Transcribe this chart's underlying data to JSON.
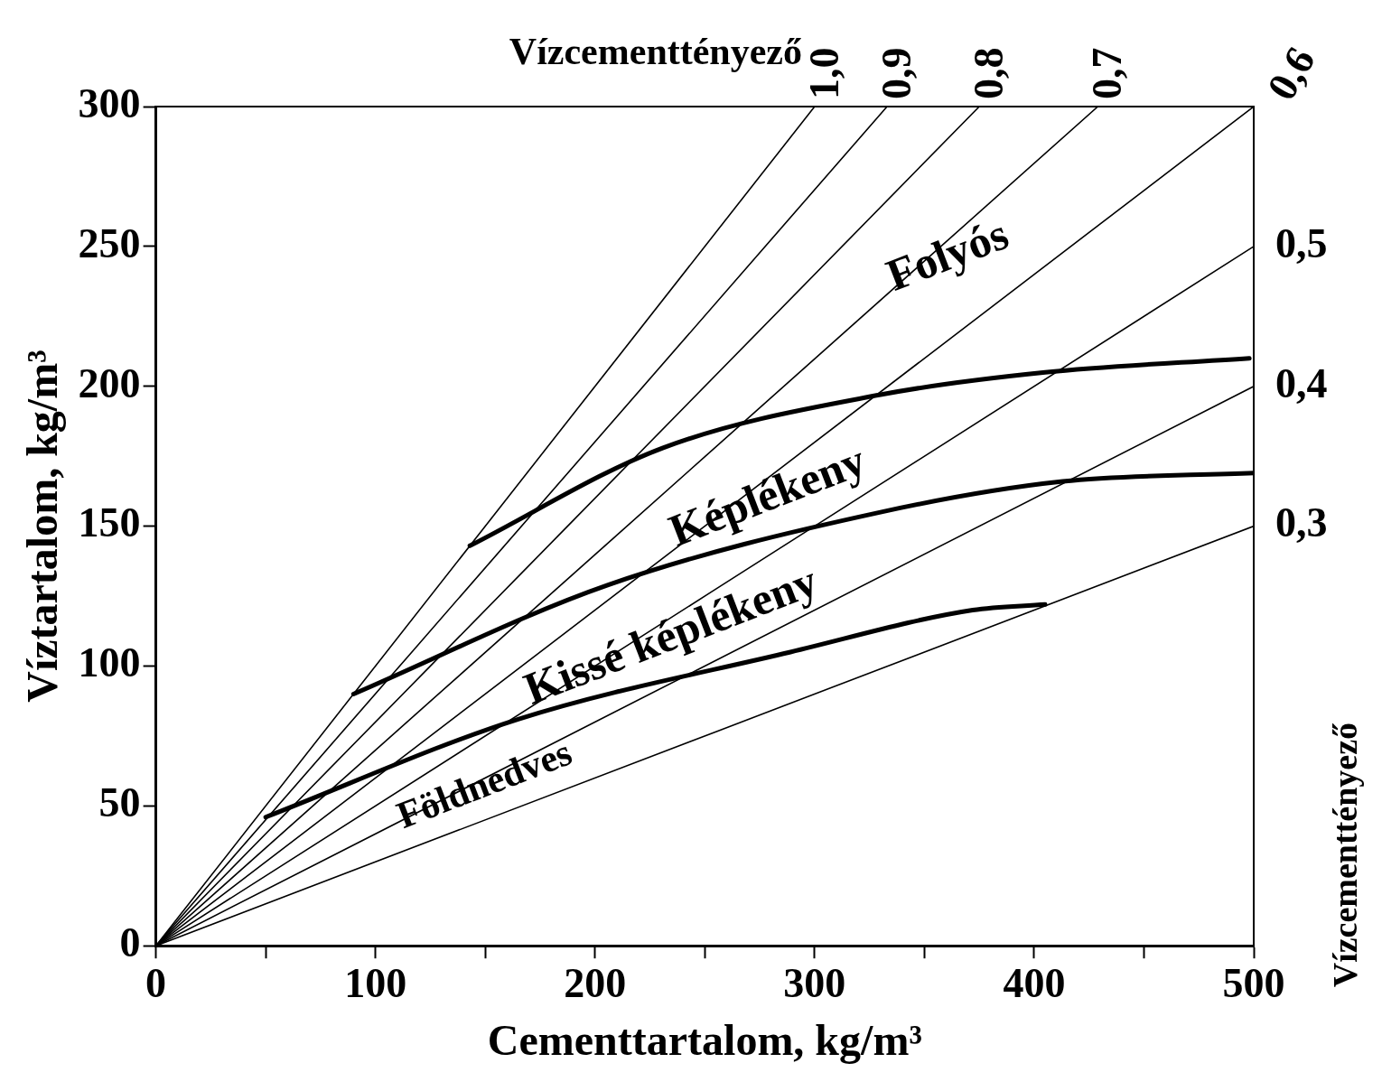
{
  "chart_data": {
    "type": "line",
    "xlabel": "Cementtartalom, kg/m³",
    "ylabel": "Víztartalom, kg/m³",
    "xlim": [
      0,
      500
    ],
    "ylim": [
      0,
      300
    ],
    "xticks": [
      0,
      {
        "value": 50,
        "label": null
      },
      100,
      {
        "value": 150,
        "label": null
      },
      200,
      {
        "value": 250,
        "label": null
      },
      300,
      {
        "value": 350,
        "label": null
      },
      400,
      {
        "value": 450,
        "label": null
      },
      500
    ],
    "yticks": [
      0,
      50,
      100,
      150,
      200,
      250,
      300
    ],
    "grid": false,
    "legend": false,
    "marker": "none",
    "line_style": "solid",
    "series": [
      {
        "name": "1,0",
        "color": "#000000",
        "x": [
          0,
          300
        ],
        "values": [
          0,
          300
        ]
      },
      {
        "name": "0,9",
        "color": "#000000",
        "x": [
          0,
          333
        ],
        "values": [
          0,
          300
        ]
      },
      {
        "name": "0,8",
        "color": "#000000",
        "x": [
          0,
          375
        ],
        "values": [
          0,
          300
        ]
      },
      {
        "name": "0,7",
        "color": "#000000",
        "x": [
          0,
          429
        ],
        "values": [
          0,
          300
        ]
      },
      {
        "name": "0,6",
        "color": "#000000",
        "x": [
          0,
          500
        ],
        "values": [
          0,
          300
        ]
      },
      {
        "name": "0,5",
        "color": "#000000",
        "x": [
          0,
          500
        ],
        "values": [
          0,
          250
        ]
      },
      {
        "name": "0,4",
        "color": "#000000",
        "x": [
          0,
          500
        ],
        "values": [
          0,
          200
        ]
      },
      {
        "name": "0,3",
        "color": "#000000",
        "x": [
          0,
          500
        ],
        "values": [
          0,
          150
        ]
      },
      {
        "color": "#000000",
        "x": [
          143,
          231,
          330,
          405,
          498
        ],
        "values": [
          143,
          178,
          197,
          205,
          210
        ]
      },
      {
        "color": "#000000",
        "x": [
          90,
          206,
          330,
          413,
          500
        ],
        "values": [
          90,
          129,
          155,
          166,
          169
        ]
      },
      {
        "color": "#000000",
        "x": [
          50,
          165,
          289,
          372,
          405
        ],
        "values": [
          46,
          81,
          105,
          120,
          122
        ]
      }
    ],
    "annotations": [
      "Vízcementtényező",
      "Vízcementtényező",
      "Folyós",
      "Képlékeny",
      "Kissé képlékeny",
      "Földnedves"
    ]
  }
}
